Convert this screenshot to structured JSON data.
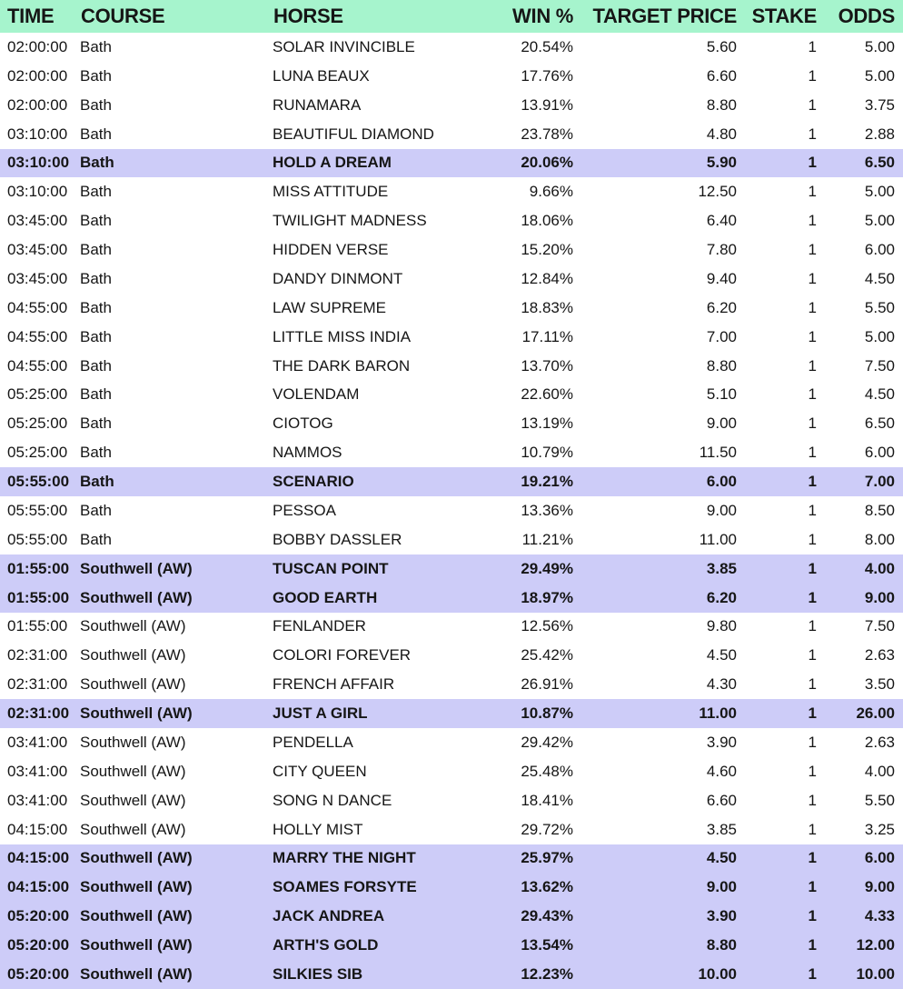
{
  "colors": {
    "header_bg": "#a6f4cd",
    "highlight_bg": "#cdccf8",
    "row_bg": "#ffffff",
    "text": "#161616"
  },
  "table": {
    "columns": [
      {
        "label": "TIME",
        "align": "left"
      },
      {
        "label": "COURSE",
        "align": "left"
      },
      {
        "label": "HORSE",
        "align": "left"
      },
      {
        "label": "WIN %",
        "align": "right"
      },
      {
        "label": "TARGET PRICE",
        "align": "right"
      },
      {
        "label": "STAKE",
        "align": "right"
      },
      {
        "label": "ODDS",
        "align": "right"
      }
    ],
    "row_keys": [
      "time",
      "course",
      "horse",
      "win_pct",
      "target_price",
      "stake",
      "odds"
    ],
    "rows": [
      {
        "time": "02:00:00",
        "course": "Bath",
        "horse": "SOLAR INVINCIBLE",
        "win_pct": "20.54%",
        "target_price": "5.60",
        "stake": "1",
        "odds": "5.00",
        "highlighted": false
      },
      {
        "time": "02:00:00",
        "course": "Bath",
        "horse": "LUNA BEAUX",
        "win_pct": "17.76%",
        "target_price": "6.60",
        "stake": "1",
        "odds": "5.00",
        "highlighted": false
      },
      {
        "time": "02:00:00",
        "course": "Bath",
        "horse": "RUNAMARA",
        "win_pct": "13.91%",
        "target_price": "8.80",
        "stake": "1",
        "odds": "3.75",
        "highlighted": false
      },
      {
        "time": "03:10:00",
        "course": "Bath",
        "horse": "BEAUTIFUL DIAMOND",
        "win_pct": "23.78%",
        "target_price": "4.80",
        "stake": "1",
        "odds": "2.88",
        "highlighted": false
      },
      {
        "time": "03:10:00",
        "course": "Bath",
        "horse": "HOLD A DREAM",
        "win_pct": "20.06%",
        "target_price": "5.90",
        "stake": "1",
        "odds": "6.50",
        "highlighted": true
      },
      {
        "time": "03:10:00",
        "course": "Bath",
        "horse": "MISS ATTITUDE",
        "win_pct": "9.66%",
        "target_price": "12.50",
        "stake": "1",
        "odds": "5.00",
        "highlighted": false
      },
      {
        "time": "03:45:00",
        "course": "Bath",
        "horse": "TWILIGHT MADNESS",
        "win_pct": "18.06%",
        "target_price": "6.40",
        "stake": "1",
        "odds": "5.00",
        "highlighted": false
      },
      {
        "time": "03:45:00",
        "course": "Bath",
        "horse": "HIDDEN VERSE",
        "win_pct": "15.20%",
        "target_price": "7.80",
        "stake": "1",
        "odds": "6.00",
        "highlighted": false
      },
      {
        "time": "03:45:00",
        "course": "Bath",
        "horse": "DANDY DINMONT",
        "win_pct": "12.84%",
        "target_price": "9.40",
        "stake": "1",
        "odds": "4.50",
        "highlighted": false
      },
      {
        "time": "04:55:00",
        "course": "Bath",
        "horse": "LAW SUPREME",
        "win_pct": "18.83%",
        "target_price": "6.20",
        "stake": "1",
        "odds": "5.50",
        "highlighted": false
      },
      {
        "time": "04:55:00",
        "course": "Bath",
        "horse": "LITTLE MISS INDIA",
        "win_pct": "17.11%",
        "target_price": "7.00",
        "stake": "1",
        "odds": "5.00",
        "highlighted": false
      },
      {
        "time": "04:55:00",
        "course": "Bath",
        "horse": "THE DARK BARON",
        "win_pct": "13.70%",
        "target_price": "8.80",
        "stake": "1",
        "odds": "7.50",
        "highlighted": false
      },
      {
        "time": "05:25:00",
        "course": "Bath",
        "horse": "VOLENDAM",
        "win_pct": "22.60%",
        "target_price": "5.10",
        "stake": "1",
        "odds": "4.50",
        "highlighted": false
      },
      {
        "time": "05:25:00",
        "course": "Bath",
        "horse": "CIOTOG",
        "win_pct": "13.19%",
        "target_price": "9.00",
        "stake": "1",
        "odds": "6.50",
        "highlighted": false
      },
      {
        "time": "05:25:00",
        "course": "Bath",
        "horse": "NAMMOS",
        "win_pct": "10.79%",
        "target_price": "11.50",
        "stake": "1",
        "odds": "6.00",
        "highlighted": false
      },
      {
        "time": "05:55:00",
        "course": "Bath",
        "horse": "SCENARIO",
        "win_pct": "19.21%",
        "target_price": "6.00",
        "stake": "1",
        "odds": "7.00",
        "highlighted": true
      },
      {
        "time": "05:55:00",
        "course": "Bath",
        "horse": "PESSOA",
        "win_pct": "13.36%",
        "target_price": "9.00",
        "stake": "1",
        "odds": "8.50",
        "highlighted": false
      },
      {
        "time": "05:55:00",
        "course": "Bath",
        "horse": "BOBBY DASSLER",
        "win_pct": "11.21%",
        "target_price": "11.00",
        "stake": "1",
        "odds": "8.00",
        "highlighted": false
      },
      {
        "time": "01:55:00",
        "course": "Southwell (AW)",
        "horse": "TUSCAN POINT",
        "win_pct": "29.49%",
        "target_price": "3.85",
        "stake": "1",
        "odds": "4.00",
        "highlighted": true
      },
      {
        "time": "01:55:00",
        "course": "Southwell (AW)",
        "horse": "GOOD EARTH",
        "win_pct": "18.97%",
        "target_price": "6.20",
        "stake": "1",
        "odds": "9.00",
        "highlighted": true
      },
      {
        "time": "01:55:00",
        "course": "Southwell (AW)",
        "horse": "FENLANDER",
        "win_pct": "12.56%",
        "target_price": "9.80",
        "stake": "1",
        "odds": "7.50",
        "highlighted": false
      },
      {
        "time": "02:31:00",
        "course": "Southwell (AW)",
        "horse": "COLORI FOREVER",
        "win_pct": "25.42%",
        "target_price": "4.50",
        "stake": "1",
        "odds": "2.63",
        "highlighted": false
      },
      {
        "time": "02:31:00",
        "course": "Southwell (AW)",
        "horse": "FRENCH AFFAIR",
        "win_pct": "26.91%",
        "target_price": "4.30",
        "stake": "1",
        "odds": "3.50",
        "highlighted": false
      },
      {
        "time": "02:31:00",
        "course": "Southwell (AW)",
        "horse": "JUST A GIRL",
        "win_pct": "10.87%",
        "target_price": "11.00",
        "stake": "1",
        "odds": "26.00",
        "highlighted": true
      },
      {
        "time": "03:41:00",
        "course": "Southwell (AW)",
        "horse": "PENDELLA",
        "win_pct": "29.42%",
        "target_price": "3.90",
        "stake": "1",
        "odds": "2.63",
        "highlighted": false
      },
      {
        "time": "03:41:00",
        "course": "Southwell (AW)",
        "horse": "CITY QUEEN",
        "win_pct": "25.48%",
        "target_price": "4.60",
        "stake": "1",
        "odds": "4.00",
        "highlighted": false
      },
      {
        "time": "03:41:00",
        "course": "Southwell (AW)",
        "horse": "SONG N DANCE",
        "win_pct": "18.41%",
        "target_price": "6.60",
        "stake": "1",
        "odds": "5.50",
        "highlighted": false
      },
      {
        "time": "04:15:00",
        "course": "Southwell (AW)",
        "horse": "HOLLY MIST",
        "win_pct": "29.72%",
        "target_price": "3.85",
        "stake": "1",
        "odds": "3.25",
        "highlighted": false
      },
      {
        "time": "04:15:00",
        "course": "Southwell (AW)",
        "horse": "MARRY THE NIGHT",
        "win_pct": "25.97%",
        "target_price": "4.50",
        "stake": "1",
        "odds": "6.00",
        "highlighted": true
      },
      {
        "time": "04:15:00",
        "course": "Southwell (AW)",
        "horse": "SOAMES FORSYTE",
        "win_pct": "13.62%",
        "target_price": "9.00",
        "stake": "1",
        "odds": "9.00",
        "highlighted": true
      },
      {
        "time": "05:20:00",
        "course": "Southwell (AW)",
        "horse": "JACK ANDREA",
        "win_pct": "29.43%",
        "target_price": "3.90",
        "stake": "1",
        "odds": "4.33",
        "highlighted": true
      },
      {
        "time": "05:20:00",
        "course": "Southwell (AW)",
        "horse": "ARTH'S GOLD",
        "win_pct": "13.54%",
        "target_price": "8.80",
        "stake": "1",
        "odds": "12.00",
        "highlighted": true
      },
      {
        "time": "05:20:00",
        "course": "Southwell (AW)",
        "horse": "SILKIES SIB",
        "win_pct": "12.23%",
        "target_price": "10.00",
        "stake": "1",
        "odds": "10.00",
        "highlighted": true
      }
    ]
  }
}
